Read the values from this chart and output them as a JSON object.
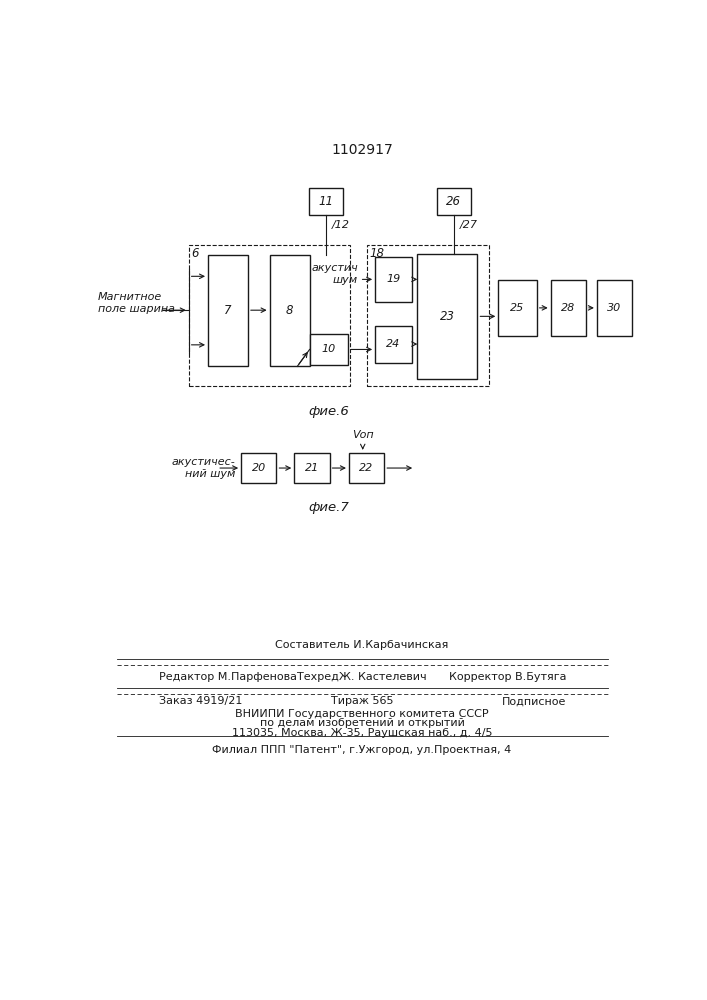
{
  "title": "1102917",
  "fig6_label": "фие.6",
  "fig7_label": "фие.7",
  "bg_color": "#ffffff",
  "line_color": "#1a1a1a",
  "box_color": "#ffffff",
  "font_size": 8.5,
  "title_font_size": 10,
  "footer": {
    "line1_left": "Редактор М.Парфенова",
    "line1_center_top": "Составитель И.Карбачинская",
    "line1_center_bot": "ТехредЖ. Кастелевич",
    "line1_right": "Корректор В.Бутяга",
    "line2_left": "Заказ 4919/21",
    "line2_center": "Тираж 565",
    "line2_right": "Подписное",
    "line3": "ВНИИПИ Государственного комитета СССР",
    "line4": "по делам изобретений и открытий",
    "line5": "113035, Москва, Ж-35, Раушская наб., д. 4/5",
    "line6": "Филиал ППП \"Патент\", г.Ужгород, ул.Проектная, 4"
  }
}
